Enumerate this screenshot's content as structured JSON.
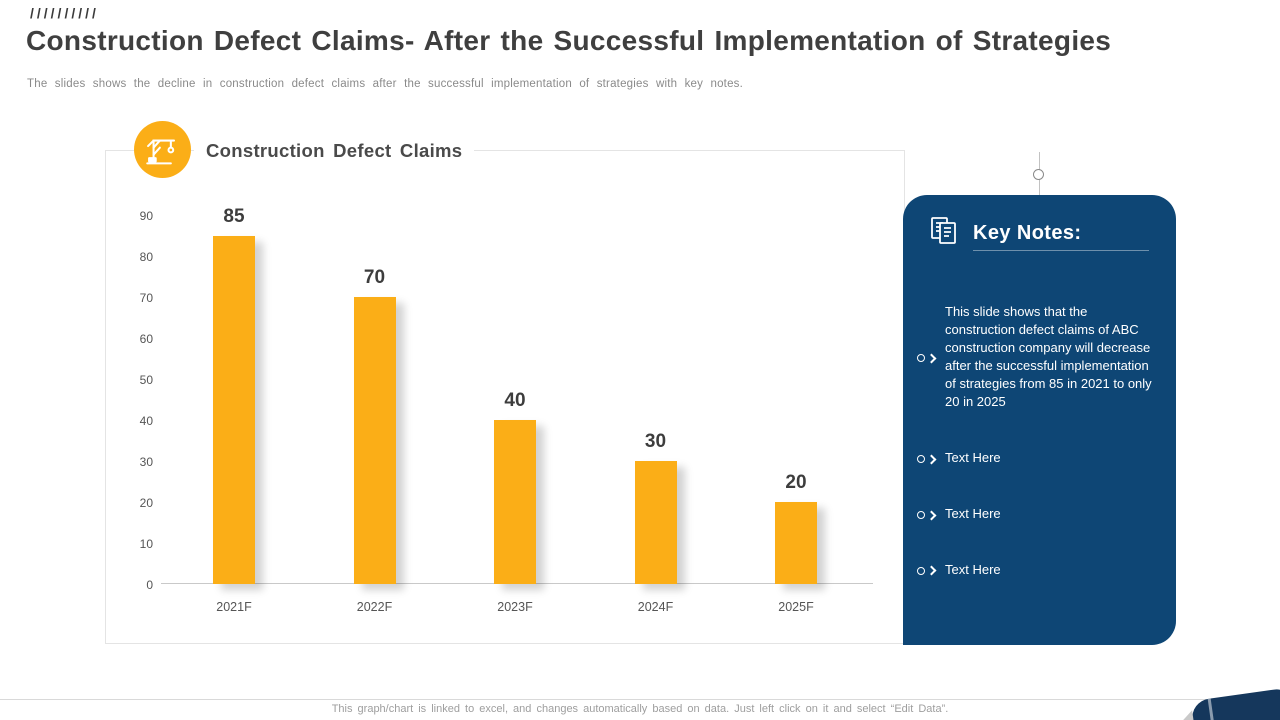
{
  "slide": {
    "decoration_slashes": "//////////",
    "title": "Construction Defect Claims- After the Successful Implementation of Strategies",
    "subtitle": "The slides shows the decline in construction defect claims after the successful implementation of strategies with key notes.",
    "footer": "This graph/chart is linked to excel, and changes automatically based on data. Just left click on it and select “Edit Data”."
  },
  "chart": {
    "title": "Construction Defect Claims"
  },
  "chart_data": {
    "type": "bar",
    "categories": [
      "2021F",
      "2022F",
      "2023F",
      "2024F",
      "2025F"
    ],
    "values": [
      85,
      70,
      40,
      30,
      20
    ],
    "title": "Construction Defect Claims",
    "xlabel": "",
    "ylabel": "",
    "ylim": [
      0,
      90
    ],
    "yticks": [
      0,
      10,
      20,
      30,
      40,
      50,
      60,
      70,
      80,
      90
    ],
    "grid": false,
    "legend": "none",
    "bar_color": "#FBAE17"
  },
  "key_notes": {
    "title": "Key Notes:",
    "bg_color": "#0E4675",
    "items": [
      "This slide shows that the construction defect claims of ABC construction company will decrease after the successful implementation of strategies from 85 in 2021 to only 20 in 2025",
      "Text Here",
      "Text Here",
      "Text Here"
    ]
  },
  "colors": {
    "bar": "#FBAE17",
    "panel": "#0E4675",
    "title_text": "#3F3F3F"
  }
}
